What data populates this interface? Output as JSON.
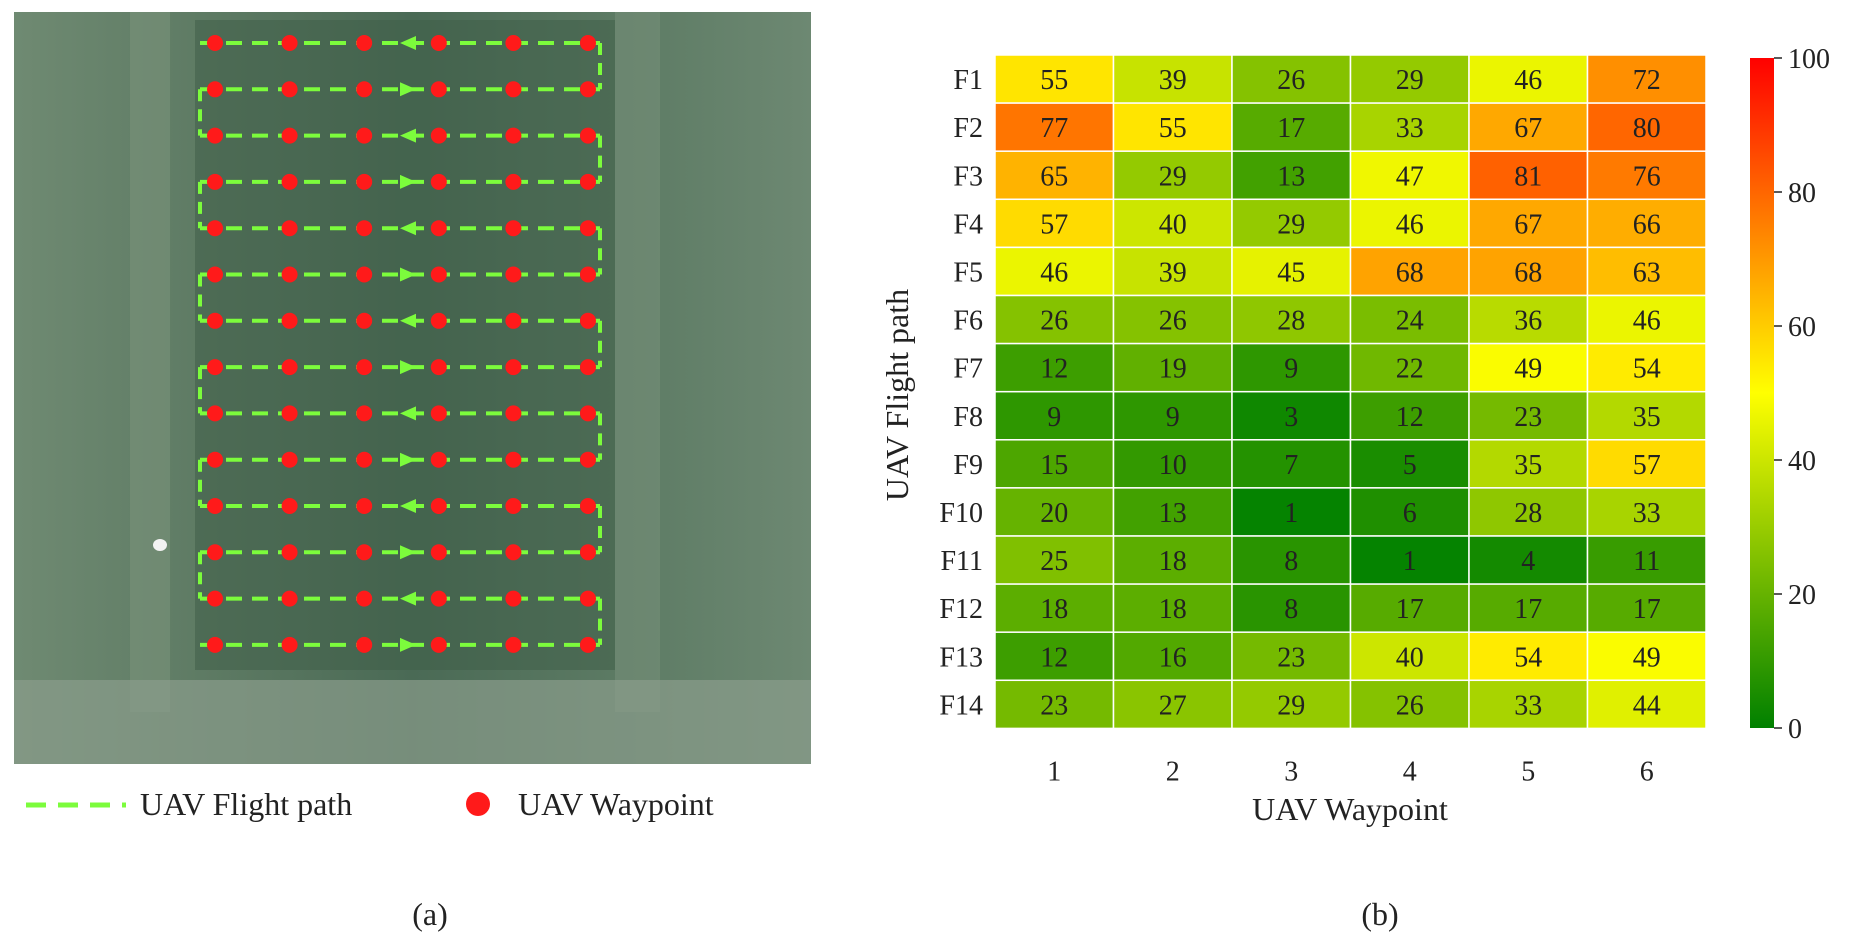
{
  "panel_a": {
    "caption": "(a)",
    "legend": {
      "path_label": "UAV Flight path",
      "waypoint_label": "UAV Waypoint"
    },
    "grid": {
      "columns": 6,
      "rows": 14
    },
    "colors": {
      "path": "#7CFC3C",
      "waypoint": "#FF1A1A"
    }
  },
  "panel_b": {
    "caption": "(b)"
  },
  "chart_data": {
    "type": "heatmap",
    "title": "",
    "xlabel": "UAV Waypoint",
    "ylabel": "UAV Flight path",
    "x": [
      "1",
      "2",
      "3",
      "4",
      "5",
      "6"
    ],
    "y": [
      "F1",
      "F2",
      "F3",
      "F4",
      "F5",
      "F6",
      "F7",
      "F8",
      "F9",
      "F10",
      "F11",
      "F12",
      "F13",
      "F14"
    ],
    "values": [
      [
        55,
        39,
        26,
        29,
        46,
        72
      ],
      [
        77,
        55,
        17,
        33,
        67,
        80
      ],
      [
        65,
        29,
        13,
        47,
        81,
        76
      ],
      [
        57,
        40,
        29,
        46,
        67,
        66
      ],
      [
        46,
        39,
        45,
        68,
        68,
        63
      ],
      [
        26,
        26,
        28,
        24,
        36,
        46
      ],
      [
        12,
        19,
        9,
        22,
        49,
        54
      ],
      [
        9,
        9,
        3,
        12,
        23,
        35
      ],
      [
        15,
        10,
        7,
        5,
        35,
        57
      ],
      [
        20,
        13,
        1,
        6,
        28,
        33
      ],
      [
        25,
        18,
        8,
        1,
        4,
        11
      ],
      [
        18,
        18,
        8,
        17,
        17,
        17
      ],
      [
        12,
        16,
        23,
        40,
        54,
        49
      ],
      [
        23,
        27,
        29,
        26,
        33,
        44
      ]
    ],
    "colorbar": {
      "range": [
        0,
        100
      ],
      "ticks": [
        "0",
        "20",
        "40",
        "60",
        "80",
        "100"
      ],
      "colors": [
        "#008000",
        "#FFFF00",
        "#FF0000"
      ]
    }
  }
}
